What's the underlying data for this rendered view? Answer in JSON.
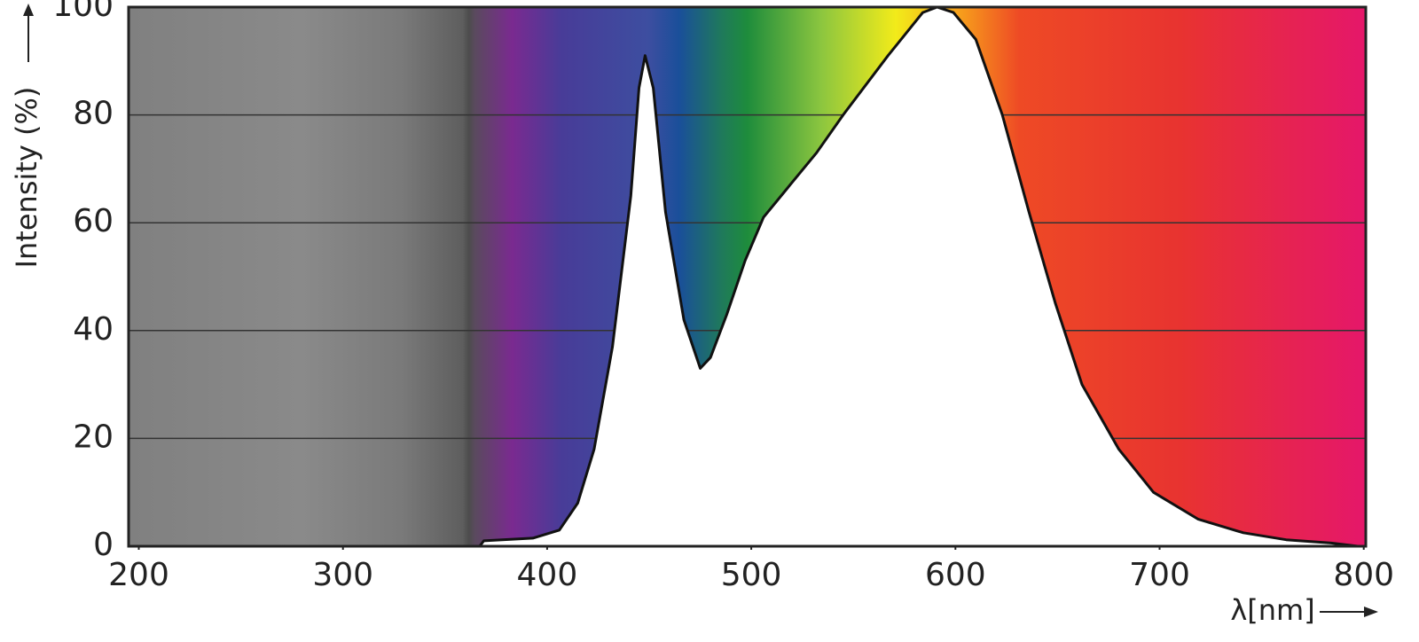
{
  "chart_data": {
    "type": "area",
    "ylabel": "Intensity (%)",
    "xlabel": "λ[nm]",
    "series": [
      {
        "color": "#111111",
        "fill": "#ffffff",
        "x": [
          367,
          369,
          393,
          406,
          415,
          423,
          432,
          441,
          445,
          448,
          452,
          458,
          467,
          475,
          480,
          488,
          497,
          506,
          519,
          532,
          545,
          567,
          584,
          591,
          599,
          610,
          623,
          636,
          649,
          662,
          680,
          697,
          719,
          741,
          762,
          784,
          797
        ],
        "values": [
          0,
          1,
          1.5,
          3,
          8,
          18,
          37,
          65,
          85,
          91,
          85,
          62,
          42,
          33,
          35,
          43,
          53,
          61,
          67,
          73,
          80,
          91,
          99,
          100,
          99,
          94,
          80,
          62,
          45,
          30,
          18,
          10,
          5,
          2.5,
          1.2,
          0.6,
          0
        ]
      }
    ],
    "xlim": [
      195,
      801
    ],
    "xticks": [
      200,
      300,
      400,
      500,
      600,
      700,
      800
    ],
    "ylim": [
      0,
      100
    ],
    "yticks": [
      0,
      20,
      40,
      60,
      80,
      100
    ],
    "grid": true
  }
}
